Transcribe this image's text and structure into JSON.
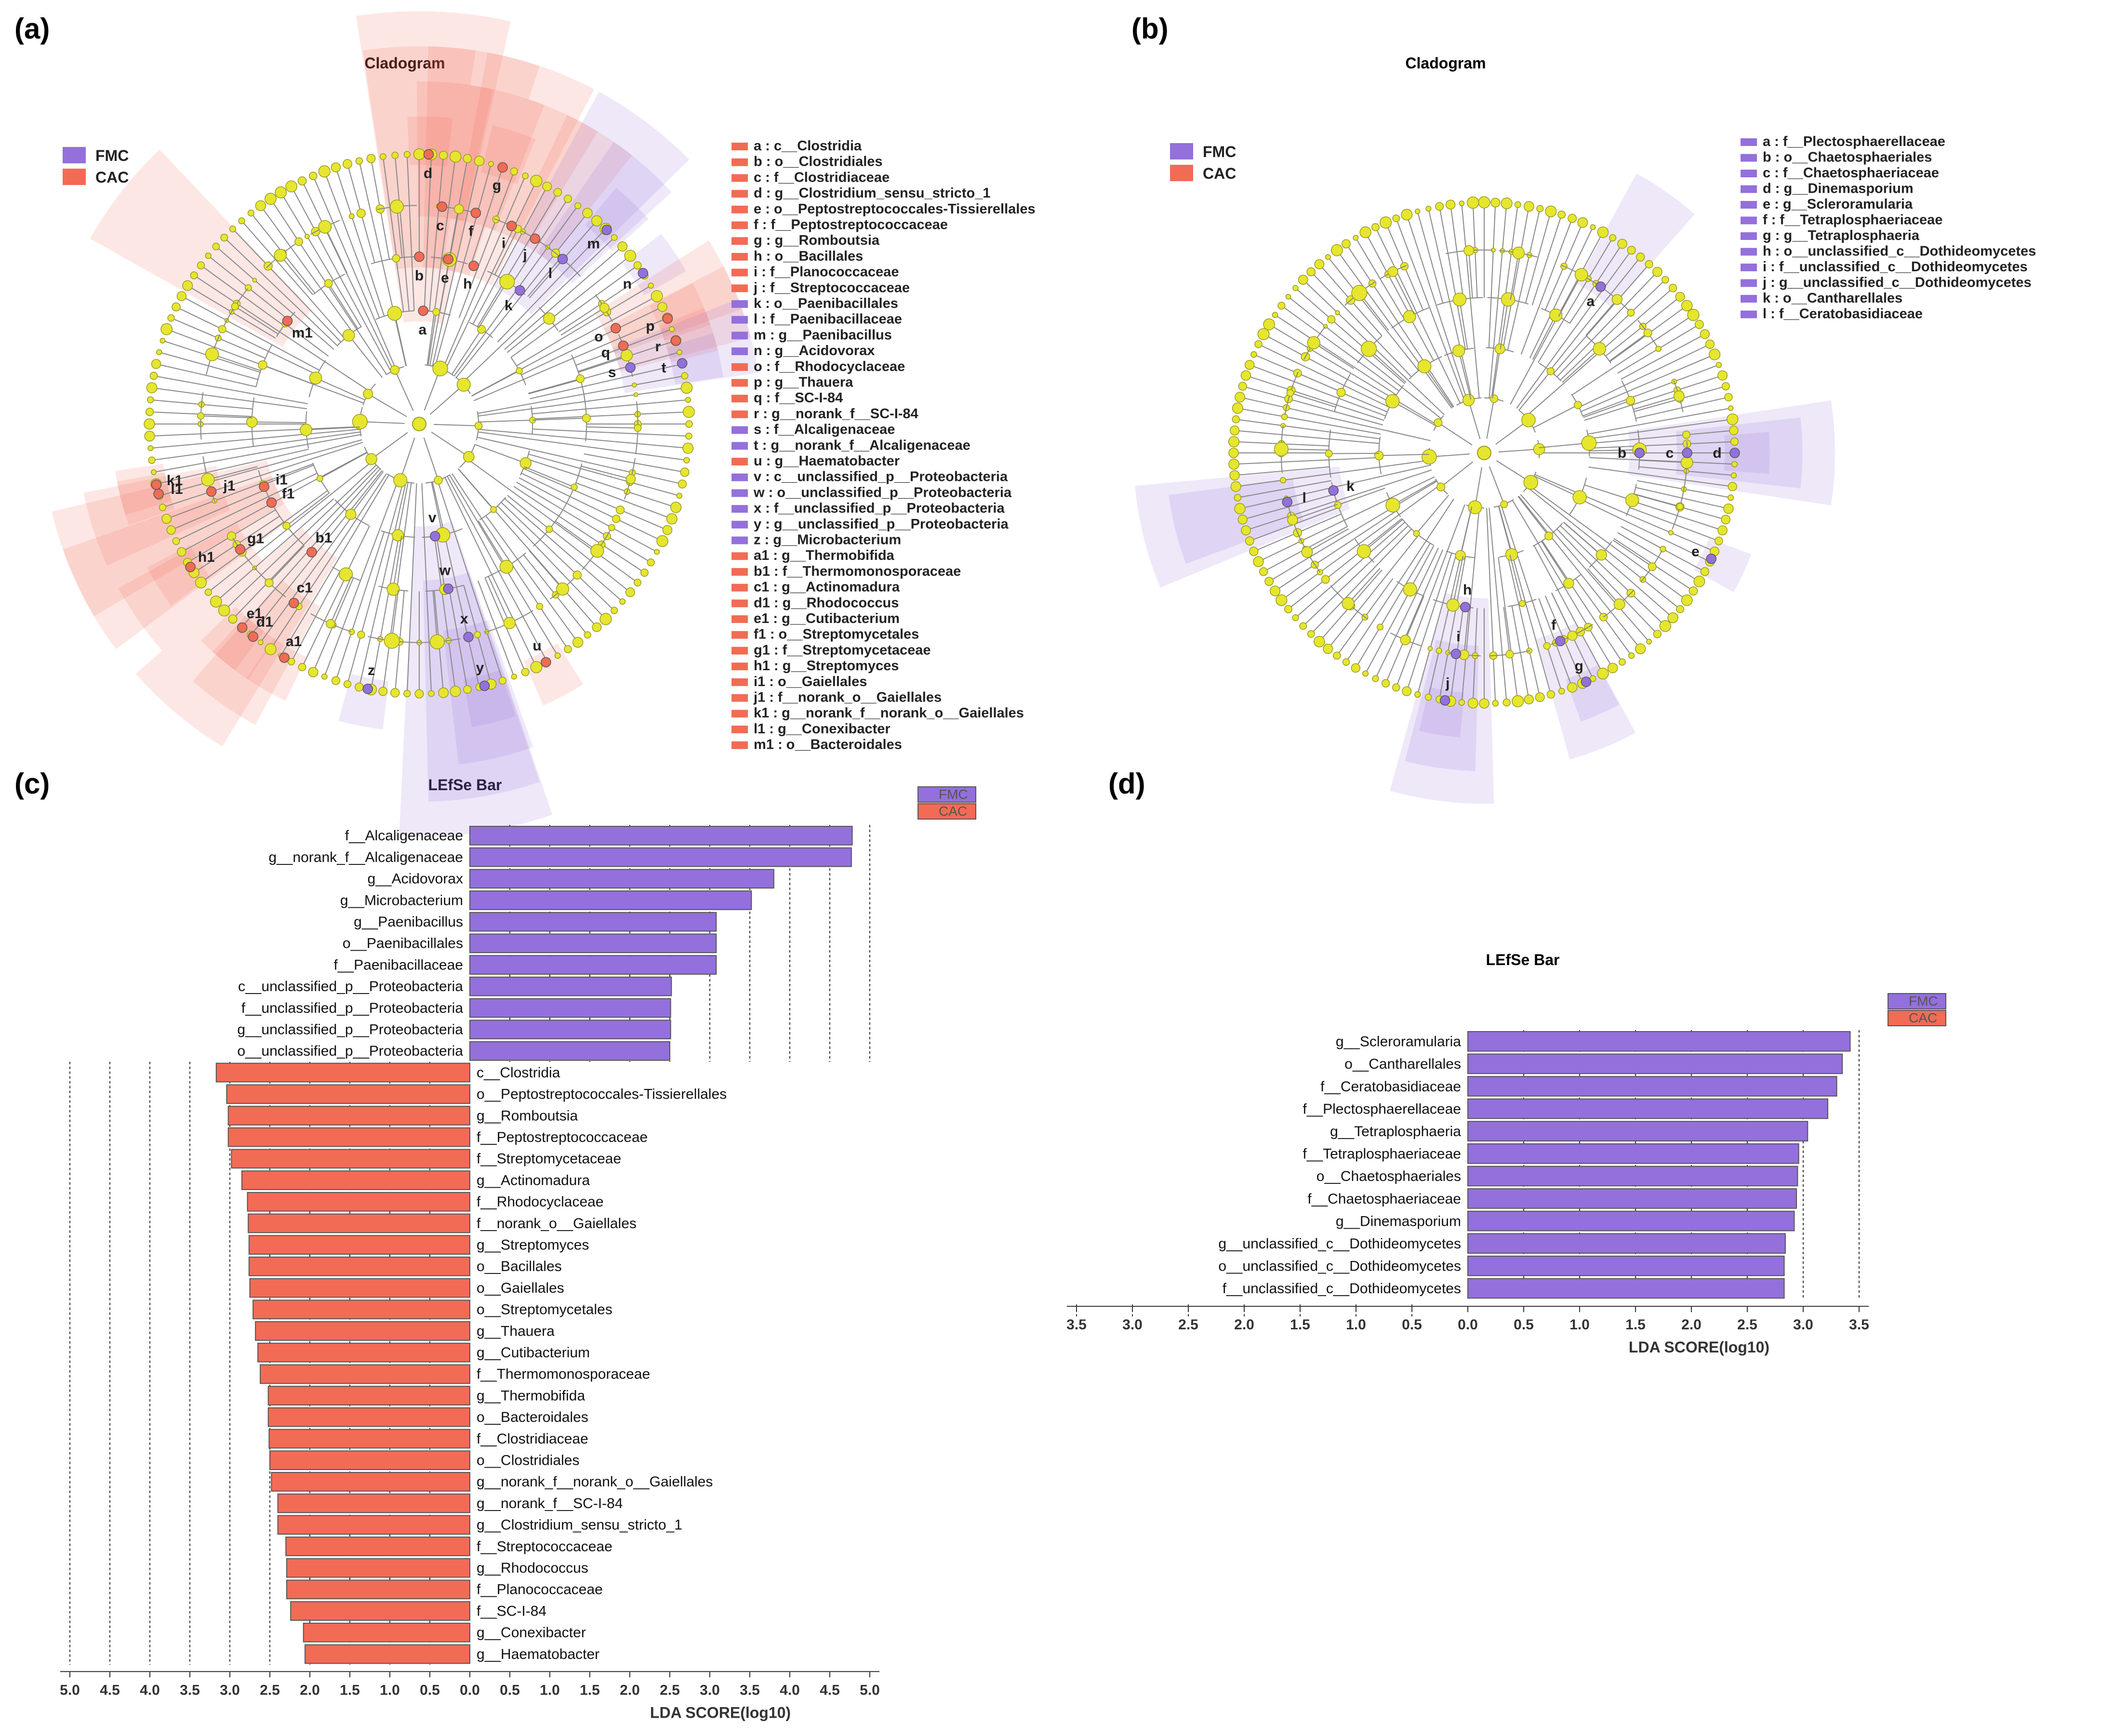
{
  "colors": {
    "fmc": "#9370DB",
    "cac": "#F26B55",
    "node": "#E6E62E",
    "nodeStroke": "#9A9A22",
    "line": "#888888"
  },
  "panels": {
    "a": {
      "label": "(a)",
      "title": "Cladogram"
    },
    "b": {
      "label": "(b)",
      "title": "Cladogram"
    },
    "c": {
      "label": "(c)",
      "title": "LEfSe Bar"
    },
    "d": {
      "label": "(d)",
      "title": "LEfSe Bar"
    }
  },
  "groups": {
    "fmc": "FMC",
    "cac": "CAC"
  },
  "cladogram_a": {
    "legend": [
      {
        "key": "a",
        "text": "a : c__Clostridia",
        "group": "cac"
      },
      {
        "key": "b",
        "text": "b : o__Clostridiales",
        "group": "cac"
      },
      {
        "key": "c",
        "text": "c : f__Clostridiaceae",
        "group": "cac"
      },
      {
        "key": "d",
        "text": "d : g__Clostridium_sensu_stricto_1",
        "group": "cac"
      },
      {
        "key": "e",
        "text": "e : o__Peptostreptococcales-Tissierellales",
        "group": "cac"
      },
      {
        "key": "f",
        "text": "f : f__Peptostreptococcaceae",
        "group": "cac"
      },
      {
        "key": "g",
        "text": "g : g__Romboutsia",
        "group": "cac"
      },
      {
        "key": "h",
        "text": "h : o__Bacillales",
        "group": "cac"
      },
      {
        "key": "i",
        "text": "i : f__Planococcaceae",
        "group": "cac"
      },
      {
        "key": "j",
        "text": "j : f__Streptococcaceae",
        "group": "cac"
      },
      {
        "key": "k",
        "text": "k : o__Paenibacillales",
        "group": "fmc"
      },
      {
        "key": "l",
        "text": "l : f__Paenibacillaceae",
        "group": "fmc"
      },
      {
        "key": "m",
        "text": "m : g__Paenibacillus",
        "group": "fmc"
      },
      {
        "key": "n",
        "text": "n : g__Acidovorax",
        "group": "fmc"
      },
      {
        "key": "o",
        "text": "o : f__Rhodocyclaceae",
        "group": "cac"
      },
      {
        "key": "p",
        "text": "p : g__Thauera",
        "group": "cac"
      },
      {
        "key": "q",
        "text": "q : f__SC-I-84",
        "group": "cac"
      },
      {
        "key": "r",
        "text": "r : g__norank_f__SC-I-84",
        "group": "cac"
      },
      {
        "key": "s",
        "text": "s : f__Alcaligenaceae",
        "group": "fmc"
      },
      {
        "key": "t",
        "text": "t : g__norank_f__Alcaligenaceae",
        "group": "fmc"
      },
      {
        "key": "u",
        "text": "u : g__Haematobacter",
        "group": "cac"
      },
      {
        "key": "v",
        "text": "v : c__unclassified_p__Proteobacteria",
        "group": "fmc"
      },
      {
        "key": "w",
        "text": "w : o__unclassified_p__Proteobacteria",
        "group": "fmc"
      },
      {
        "key": "x",
        "text": "x : f__unclassified_p__Proteobacteria",
        "group": "fmc"
      },
      {
        "key": "y",
        "text": "y : g__unclassified_p__Proteobacteria",
        "group": "fmc"
      },
      {
        "key": "z",
        "text": "z : g__Microbacterium",
        "group": "fmc"
      },
      {
        "key": "a1",
        "text": "a1 : g__Thermobifida",
        "group": "cac"
      },
      {
        "key": "b1",
        "text": "b1 : f__Thermomonosporaceae",
        "group": "cac"
      },
      {
        "key": "c1",
        "text": "c1 : g__Actinomadura",
        "group": "cac"
      },
      {
        "key": "d1",
        "text": "d1 : g__Rhodococcus",
        "group": "cac"
      },
      {
        "key": "e1",
        "text": "e1 : g__Cutibacterium",
        "group": "cac"
      },
      {
        "key": "f1",
        "text": "f1 : o__Streptomycetales",
        "group": "cac"
      },
      {
        "key": "g1",
        "text": "g1 : f__Streptomycetaceae",
        "group": "cac"
      },
      {
        "key": "h1",
        "text": "h1 : g__Streptomyces",
        "group": "cac"
      },
      {
        "key": "i1",
        "text": "i1 : o__Gaiellales",
        "group": "cac"
      },
      {
        "key": "j1",
        "text": "j1 : f__norank_o__Gaiellales",
        "group": "cac"
      },
      {
        "key": "k1",
        "text": "k1 : g__norank_f__norank_o__Gaiellales",
        "group": "cac"
      },
      {
        "key": "l1",
        "text": "l1 : g__Conexibacter",
        "group": "cac"
      },
      {
        "key": "m1",
        "text": "m1 : o__Bacteroidales",
        "group": "cac"
      }
    ],
    "nodes": [
      {
        "key": "a",
        "angle": -88,
        "level": 2,
        "group": "cac"
      },
      {
        "key": "b",
        "angle": -90,
        "level": 3,
        "group": "cac"
      },
      {
        "key": "c",
        "angle": -84,
        "level": 4,
        "group": "cac"
      },
      {
        "key": "d",
        "angle": -88,
        "level": 5,
        "group": "cac"
      },
      {
        "key": "e",
        "angle": -80,
        "level": 3,
        "group": "cac"
      },
      {
        "key": "f",
        "angle": -75,
        "level": 4,
        "group": "cac"
      },
      {
        "key": "g",
        "angle": -72,
        "level": 5,
        "group": "cac"
      },
      {
        "key": "h",
        "angle": -71,
        "level": 3,
        "group": "cac"
      },
      {
        "key": "i",
        "angle": -65,
        "level": 4,
        "group": "cac"
      },
      {
        "key": "j",
        "angle": -58,
        "level": 4,
        "group": "cac"
      },
      {
        "key": "k",
        "angle": -53,
        "level": 3,
        "group": "fmc"
      },
      {
        "key": "l",
        "angle": -49,
        "level": 4,
        "group": "fmc"
      },
      {
        "key": "m",
        "angle": -46,
        "level": 5,
        "group": "fmc"
      },
      {
        "key": "n",
        "angle": -34,
        "level": 5,
        "group": "fmc"
      },
      {
        "key": "o",
        "angle": -26,
        "level": 4,
        "group": "cac"
      },
      {
        "key": "p",
        "angle": -23,
        "level": 5,
        "group": "cac"
      },
      {
        "key": "q",
        "angle": -21,
        "level": 4,
        "group": "cac"
      },
      {
        "key": "r",
        "angle": -18,
        "level": 5,
        "group": "cac"
      },
      {
        "key": "s",
        "angle": -15,
        "level": 4,
        "group": "fmc"
      },
      {
        "key": "t",
        "angle": -13,
        "level": 5,
        "group": "fmc"
      },
      {
        "key": "u",
        "angle": 62,
        "level": 5,
        "group": "cac"
      },
      {
        "key": "v",
        "angle": 82,
        "level": 2,
        "group": "fmc"
      },
      {
        "key": "w",
        "angle": 80,
        "level": 3,
        "group": "fmc"
      },
      {
        "key": "x",
        "angle": 77,
        "level": 4,
        "group": "fmc"
      },
      {
        "key": "y",
        "angle": 76,
        "level": 5,
        "group": "fmc"
      },
      {
        "key": "z",
        "angle": 101,
        "level": 5,
        "group": "fmc"
      },
      {
        "key": "a1",
        "angle": 120,
        "level": 5,
        "group": "cac"
      },
      {
        "key": "b1",
        "angle": 130,
        "level": 3,
        "group": "cac"
      },
      {
        "key": "c1",
        "angle": 125,
        "level": 4,
        "group": "cac"
      },
      {
        "key": "d1",
        "angle": 128,
        "level": 5,
        "group": "cac"
      },
      {
        "key": "e1",
        "angle": 131,
        "level": 5,
        "group": "cac"
      },
      {
        "key": "f1",
        "angle": 152,
        "level": 3,
        "group": "cac"
      },
      {
        "key": "g1",
        "angle": 145,
        "level": 4,
        "group": "cac"
      },
      {
        "key": "h1",
        "angle": 148,
        "level": 5,
        "group": "cac"
      },
      {
        "key": "i1",
        "angle": 158,
        "level": 3,
        "group": "cac"
      },
      {
        "key": "j1",
        "angle": 162,
        "level": 4,
        "group": "cac"
      },
      {
        "key": "k1",
        "angle": 167,
        "level": 5,
        "group": "cac"
      },
      {
        "key": "l1",
        "angle": 165,
        "level": 5,
        "group": "cac"
      },
      {
        "key": "m1",
        "angle": -142,
        "level": 3,
        "group": "cac"
      }
    ]
  },
  "cladogram_b": {
    "legend": [
      {
        "key": "a",
        "text": "a : f__Plectosphaerellaceae",
        "group": "fmc"
      },
      {
        "key": "b",
        "text": "b : o__Chaetosphaeriales",
        "group": "fmc"
      },
      {
        "key": "c",
        "text": "c : f__Chaetosphaeriaceae",
        "group": "fmc"
      },
      {
        "key": "d",
        "text": "d : g__Dinemasporium",
        "group": "fmc"
      },
      {
        "key": "e",
        "text": "e : g__Scleroramularia",
        "group": "fmc"
      },
      {
        "key": "f",
        "text": "f : f__Tetraplosphaeriaceae",
        "group": "fmc"
      },
      {
        "key": "g",
        "text": "g : g__Tetraplosphaeria",
        "group": "fmc"
      },
      {
        "key": "h",
        "text": "h : o__unclassified_c__Dothideomycetes",
        "group": "fmc"
      },
      {
        "key": "i",
        "text": "i : f__unclassified_c__Dothideomycetes",
        "group": "fmc"
      },
      {
        "key": "j",
        "text": "j : g__unclassified_c__Dothideomycetes",
        "group": "fmc"
      },
      {
        "key": "k",
        "text": "k : o__Cantharellales",
        "group": "fmc"
      },
      {
        "key": "l",
        "text": "l : f__Ceratobasidiaceae",
        "group": "fmc"
      }
    ],
    "nodes": [
      {
        "key": "a",
        "angle": -55,
        "level": 4,
        "group": "fmc"
      },
      {
        "key": "b",
        "angle": 0,
        "level": 3,
        "group": "fmc"
      },
      {
        "key": "c",
        "angle": 0,
        "level": 4,
        "group": "fmc"
      },
      {
        "key": "d",
        "angle": 0,
        "level": 5,
        "group": "fmc"
      },
      {
        "key": "e",
        "angle": 25,
        "level": 5,
        "group": "fmc"
      },
      {
        "key": "f",
        "angle": 68,
        "level": 4,
        "group": "fmc"
      },
      {
        "key": "g",
        "angle": 66,
        "level": 5,
        "group": "fmc"
      },
      {
        "key": "h",
        "angle": 97,
        "level": 3,
        "group": "fmc"
      },
      {
        "key": "i",
        "angle": 98,
        "level": 4,
        "group": "fmc"
      },
      {
        "key": "j",
        "angle": 99,
        "level": 5,
        "group": "fmc"
      },
      {
        "key": "k",
        "angle": 166,
        "level": 3,
        "group": "fmc"
      },
      {
        "key": "l",
        "angle": 166,
        "level": 4,
        "group": "fmc"
      }
    ]
  },
  "chart_data": [
    {
      "panel": "c",
      "type": "bar",
      "title": "LEfSe Bar",
      "xlabel": "LDA SCORE(log10)",
      "ylabel": "",
      "orientation": "horizontal-diverging",
      "xlim": [
        -5.0,
        5.0
      ],
      "ticks": [
        "5.0",
        "4.5",
        "4.0",
        "3.5",
        "3.0",
        "2.5",
        "2.0",
        "1.5",
        "1.0",
        "0.5",
        "0.0",
        "0.5",
        "1.0",
        "1.5",
        "2.0",
        "2.5",
        "3.0",
        "3.5",
        "4.0",
        "4.5",
        "5.0"
      ],
      "legend": [
        "FMC",
        "CAC"
      ],
      "series": [
        {
          "name": "FMC",
          "side": "right",
          "categories": [
            "f__Alcaligenaceae",
            "g__norank_f__Alcaligenaceae",
            "g__Acidovorax",
            "g__Microbacterium",
            "g__Paenibacillus",
            "o__Paenibacillales",
            "f__Paenibacillaceae",
            "c__unclassified_p__Proteobacteria",
            "f__unclassified_p__Proteobacteria",
            "g__unclassified_p__Proteobacteria",
            "o__unclassified_p__Proteobacteria"
          ],
          "values": [
            4.78,
            4.77,
            3.8,
            3.52,
            3.08,
            3.08,
            3.08,
            2.52,
            2.51,
            2.51,
            2.5
          ]
        },
        {
          "name": "CAC",
          "side": "left",
          "categories": [
            "c__Clostridia",
            "o__Peptostreptococcales-Tissierellales",
            "g__Romboutsia",
            "f__Peptostreptococcaceae",
            "f__Streptomycetaceae",
            "g__Actinomadura",
            "f__Rhodocyclaceae",
            "f__norank_o__Gaiellales",
            "g__Streptomyces",
            "o__Bacillales",
            "o__Gaiellales",
            "o__Streptomycetales",
            "g__Thauera",
            "g__Cutibacterium",
            "f__Thermomonosporaceae",
            "g__Thermobifida",
            "o__Bacteroidales",
            "f__Clostridiaceae",
            "o__Clostridiales",
            "g__norank_f__norank_o__Gaiellales",
            "g__norank_f__SC-I-84",
            "g__Clostridium_sensu_stricto_1",
            "f__Streptococcaceae",
            "g__Rhodococcus",
            "f__Planococcaceae",
            "f__SC-I-84",
            "g__Conexibacter",
            "g__Haematobacter"
          ],
          "values": [
            3.17,
            3.04,
            3.02,
            3.02,
            2.98,
            2.85,
            2.78,
            2.77,
            2.76,
            2.76,
            2.75,
            2.71,
            2.68,
            2.65,
            2.62,
            2.52,
            2.52,
            2.51,
            2.5,
            2.48,
            2.4,
            2.4,
            2.3,
            2.29,
            2.29,
            2.24,
            2.08,
            2.06
          ]
        }
      ]
    },
    {
      "panel": "d",
      "type": "bar",
      "title": "LEfSe Bar",
      "xlabel": "LDA SCORE(log10)",
      "ylabel": "",
      "orientation": "horizontal-diverging",
      "xlim": [
        -3.5,
        3.5
      ],
      "ticks": [
        "3.5",
        "3.0",
        "2.5",
        "2.0",
        "1.5",
        "1.0",
        "0.5",
        "0.0",
        "0.5",
        "1.0",
        "1.5",
        "2.0",
        "2.5",
        "3.0",
        "3.5"
      ],
      "legend": [
        "FMC",
        "CAC"
      ],
      "series": [
        {
          "name": "FMC",
          "side": "right",
          "categories": [
            "g__Scleroramularia",
            "o__Cantharellales",
            "f__Ceratobasidiaceae",
            "f__Plectosphaerellaceae",
            "g__Tetraplosphaeria",
            "f__Tetraplosphaeriaceae",
            "o__Chaetosphaeriales",
            "f__Chaetosphaeriaceae",
            "g__Dinemasporium",
            "g__unclassified_c__Dothideomycetes",
            "o__unclassified_c__Dothideomycetes",
            "f__unclassified_c__Dothideomycetes"
          ],
          "values": [
            3.42,
            3.35,
            3.3,
            3.22,
            3.04,
            2.96,
            2.95,
            2.94,
            2.92,
            2.84,
            2.83,
            2.83
          ]
        },
        {
          "name": "CAC",
          "side": "left",
          "categories": [],
          "values": []
        }
      ]
    }
  ]
}
